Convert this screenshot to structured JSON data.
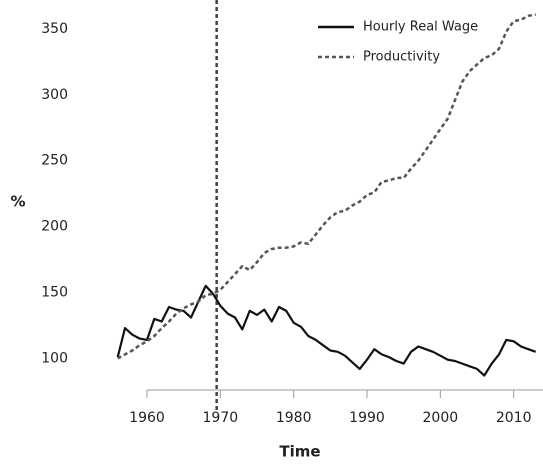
{
  "chart_data": {
    "type": "line",
    "xlabel": "Time",
    "ylabel": "%",
    "x": [
      1956,
      1957,
      1958,
      1959,
      1960,
      1961,
      1962,
      1963,
      1964,
      1965,
      1966,
      1967,
      1968,
      1969,
      1970,
      1971,
      1972,
      1973,
      1974,
      1975,
      1976,
      1977,
      1978,
      1979,
      1980,
      1981,
      1982,
      1983,
      1984,
      1985,
      1986,
      1987,
      1988,
      1989,
      1990,
      1991,
      1992,
      1993,
      1994,
      1995,
      1996,
      1997,
      1998,
      1999,
      2000,
      2001,
      2002,
      2003,
      2004,
      2005,
      2006,
      2007,
      2008,
      2009,
      2010,
      2011,
      2012,
      2013
    ],
    "series": [
      {
        "name": "Hourly Real Wage",
        "color": "#111111",
        "style": "solid",
        "values": [
          101,
          123,
          118,
          115,
          114,
          130,
          128,
          139,
          137,
          136,
          131,
          143,
          155,
          149,
          140,
          134,
          131,
          122,
          136,
          133,
          137,
          128,
          139,
          136,
          127,
          124,
          117,
          114,
          110,
          106,
          105,
          102,
          97,
          92,
          99,
          107,
          103,
          101,
          98,
          96,
          105,
          109,
          107,
          105,
          102,
          99,
          98,
          96,
          94,
          92,
          87,
          96,
          103,
          114,
          113,
          109,
          107,
          105
        ]
      },
      {
        "name": "Productivity",
        "color": "#555555",
        "style": "dotted",
        "values": [
          100,
          103,
          106,
          110,
          113,
          117,
          123,
          128,
          134,
          138,
          141,
          143,
          148,
          149,
          152,
          158,
          164,
          170,
          167,
          173,
          180,
          183,
          184,
          184,
          185,
          188,
          187,
          194,
          201,
          207,
          211,
          212,
          216,
          219,
          224,
          226,
          234,
          235,
          237,
          237,
          244,
          250,
          258,
          266,
          274,
          282,
          296,
          310,
          318,
          323,
          328,
          330,
          335,
          348,
          356,
          357,
          360,
          361
        ]
      }
    ],
    "vline": 1969.5,
    "xlim": [
      1954,
      2014
    ],
    "ylim": [
      76,
      372
    ],
    "xticks": [
      1960,
      1970,
      1980,
      1990,
      2000,
      2010
    ],
    "yticks": [
      100,
      150,
      200,
      250,
      300,
      350
    ],
    "legend": "upper right"
  }
}
